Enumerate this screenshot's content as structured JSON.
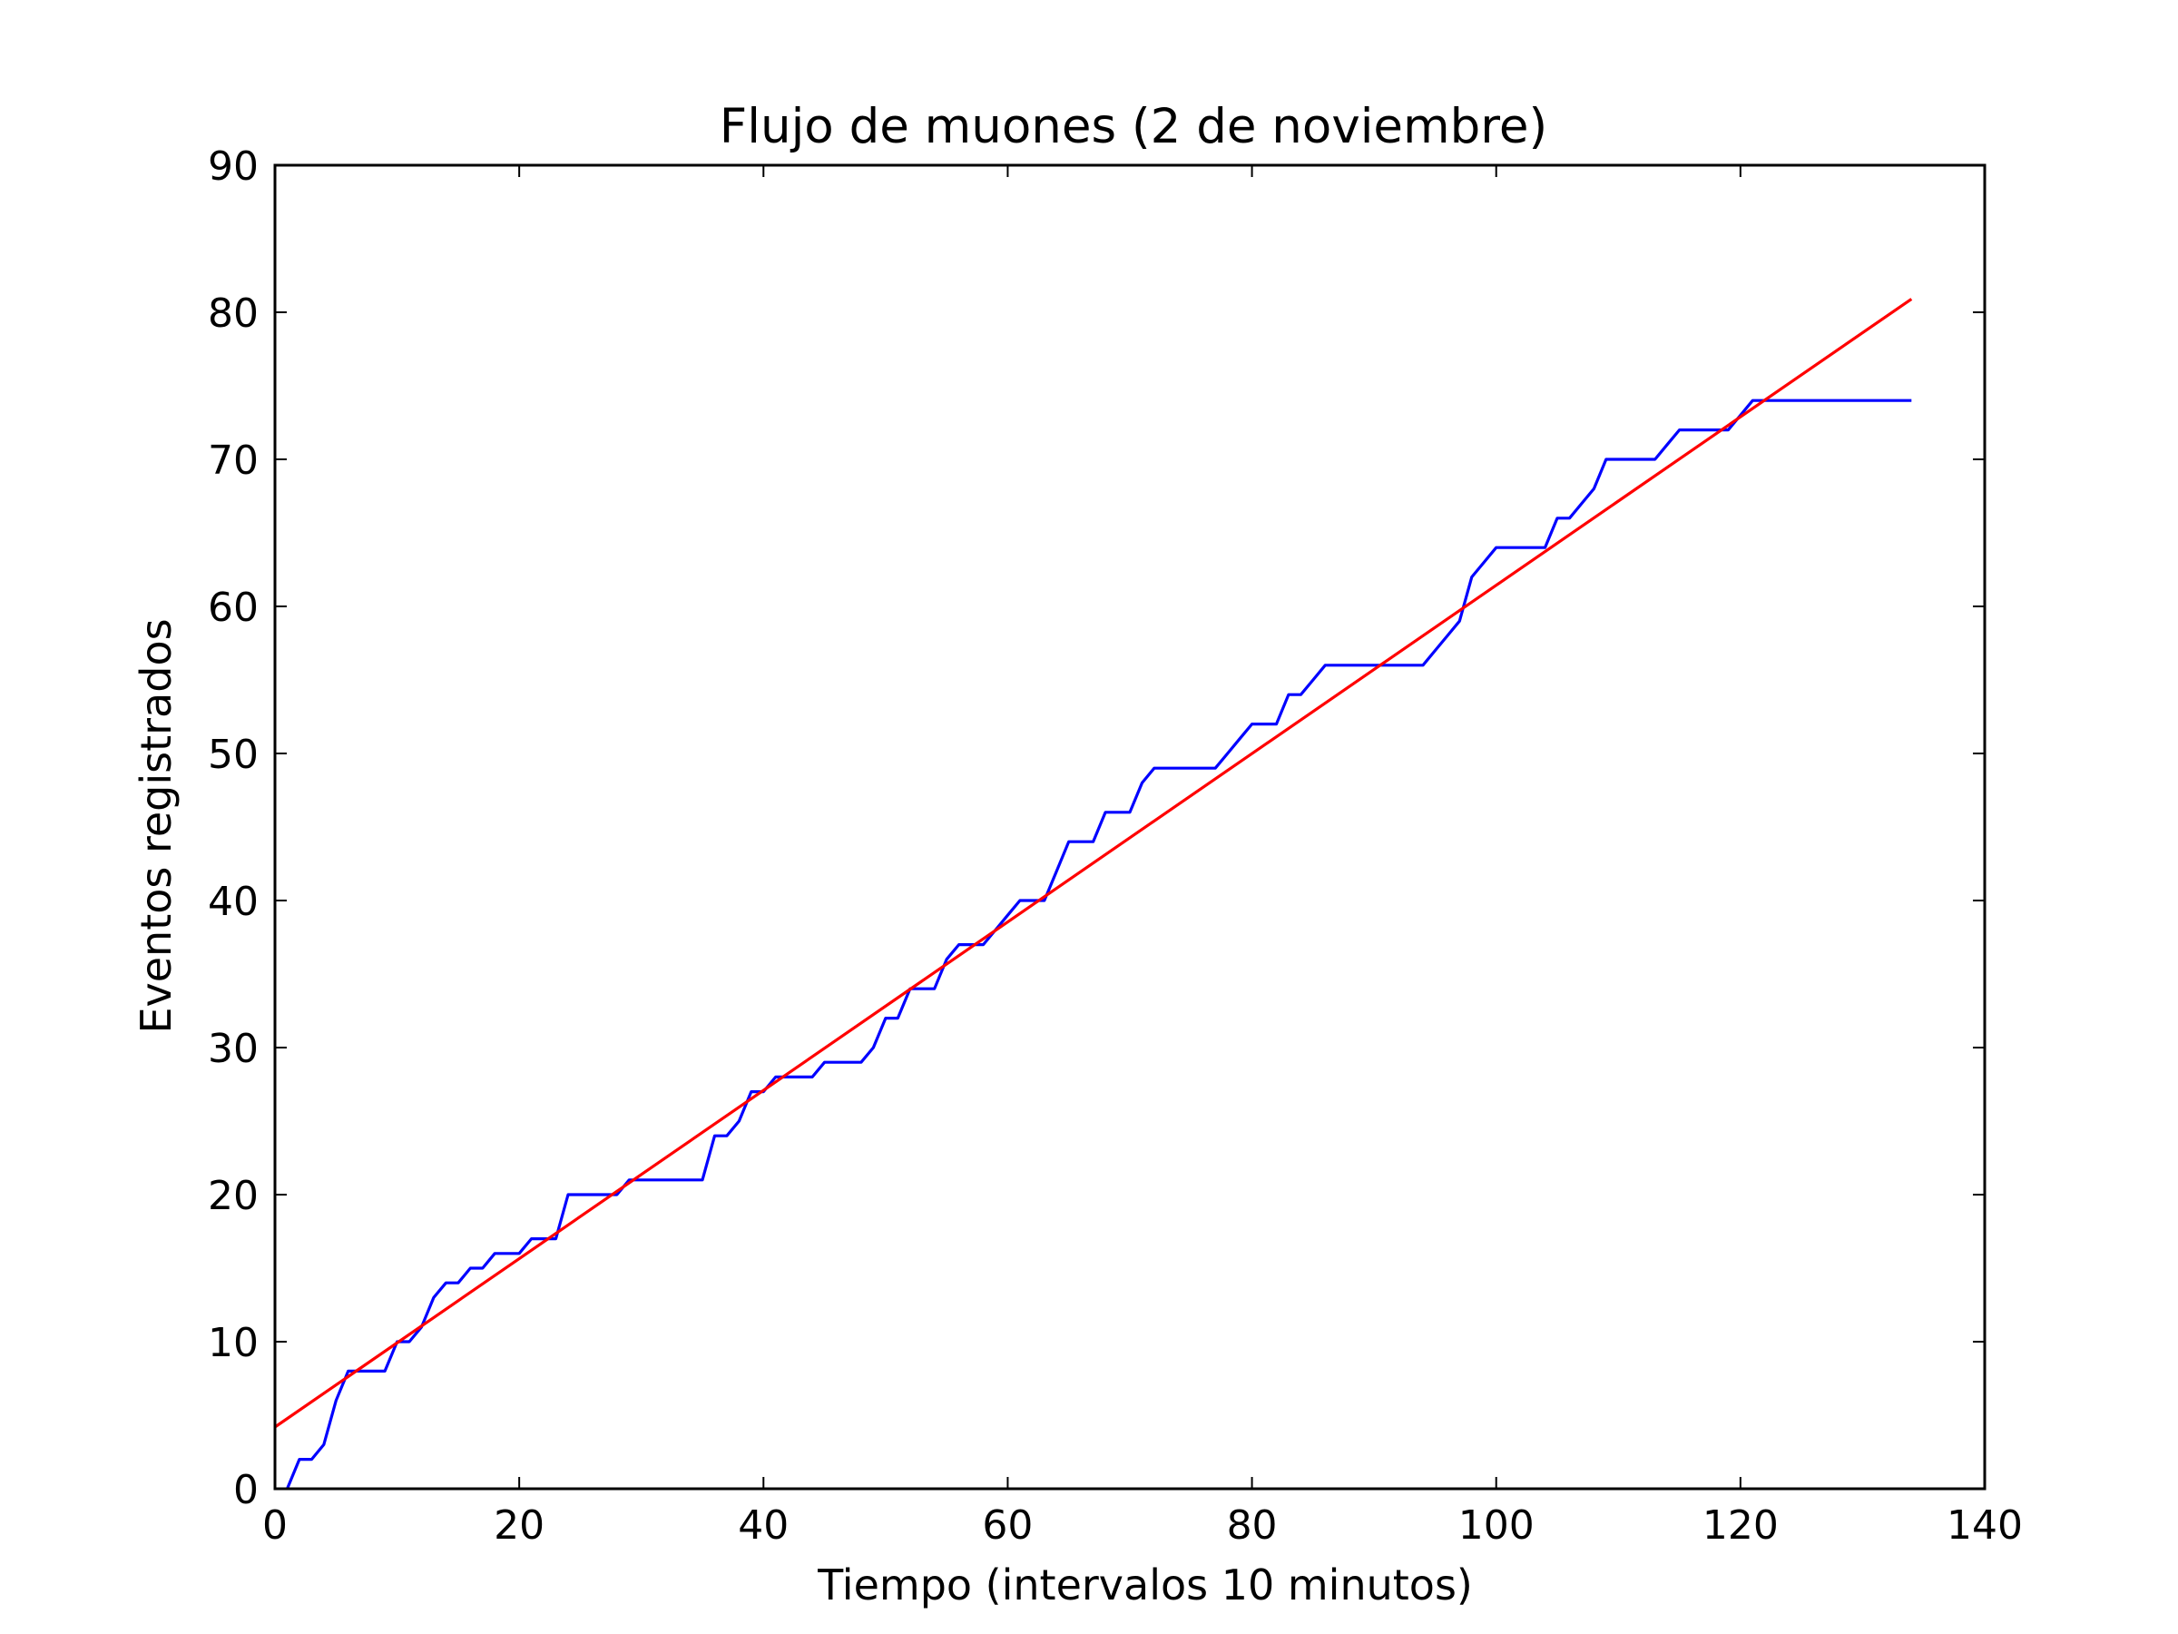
{
  "chart_data": {
    "type": "line",
    "title": "Flujo de muones (2 de noviembre)",
    "xlabel": "Tiempo (intervalos 10 minutos)",
    "ylabel": "Eventos registrados",
    "xlim": [
      0,
      140
    ],
    "ylim": [
      0,
      90
    ],
    "xticks": [
      0,
      20,
      40,
      60,
      80,
      100,
      120,
      140
    ],
    "yticks": [
      0,
      10,
      20,
      30,
      40,
      50,
      60,
      70,
      80,
      90
    ],
    "grid": false,
    "series": [
      {
        "color": "#0000ff",
        "x": [
          1,
          2,
          3,
          4,
          5,
          6,
          7,
          8,
          9,
          10,
          11,
          12,
          13,
          14,
          15,
          16,
          17,
          18,
          19,
          20,
          21,
          22,
          23,
          24,
          25,
          26,
          27,
          28,
          29,
          30,
          31,
          32,
          33,
          34,
          35,
          36,
          37,
          38,
          39,
          40,
          41,
          42,
          43,
          44,
          45,
          46,
          47,
          48,
          49,
          50,
          51,
          52,
          53,
          54,
          55,
          56,
          57,
          58,
          59,
          60,
          61,
          62,
          63,
          64,
          65,
          66,
          67,
          68,
          69,
          70,
          71,
          72,
          73,
          74,
          75,
          76,
          77,
          78,
          79,
          80,
          81,
          82,
          83,
          84,
          85,
          86,
          87,
          88,
          89,
          90,
          91,
          92,
          93,
          94,
          95,
          96,
          97,
          98,
          99,
          100,
          101,
          102,
          103,
          104,
          105,
          106,
          107,
          108,
          109,
          110,
          111,
          112,
          113,
          114,
          115,
          116,
          117,
          118,
          119,
          120,
          121,
          122,
          123,
          124,
          125,
          126,
          127,
          128,
          129,
          130,
          131,
          132,
          133,
          134
        ],
        "y": [
          0,
          2,
          2,
          3,
          6,
          8,
          8,
          8,
          8,
          10,
          10,
          11,
          13,
          14,
          14,
          15,
          15,
          16,
          16,
          16,
          17,
          17,
          17,
          20,
          20,
          20,
          20,
          20,
          21,
          21,
          21,
          21,
          21,
          21,
          21,
          24,
          24,
          25,
          27,
          27,
          28,
          28,
          28,
          28,
          29,
          29,
          29,
          29,
          30,
          32,
          32,
          34,
          34,
          34,
          36,
          37,
          37,
          37,
          38,
          39,
          40,
          40,
          40,
          42,
          44,
          44,
          44,
          46,
          46,
          46,
          48,
          49,
          49,
          49,
          49,
          49,
          49,
          50,
          51,
          52,
          52,
          52,
          54,
          54,
          55,
          56,
          56,
          56,
          56,
          56,
          56,
          56,
          56,
          56,
          57,
          58,
          59,
          62,
          63,
          64,
          64,
          64,
          64,
          64,
          66,
          66,
          67,
          68,
          70,
          70,
          70,
          70,
          70,
          71,
          72,
          72,
          72,
          72,
          72,
          73,
          74,
          74,
          74,
          74,
          74,
          74,
          74,
          74,
          74,
          74,
          74,
          74,
          74,
          74
        ]
      },
      {
        "color": "#ff0000",
        "x": [
          0,
          134
        ],
        "y": [
          4.2,
          80.9
        ]
      }
    ]
  }
}
